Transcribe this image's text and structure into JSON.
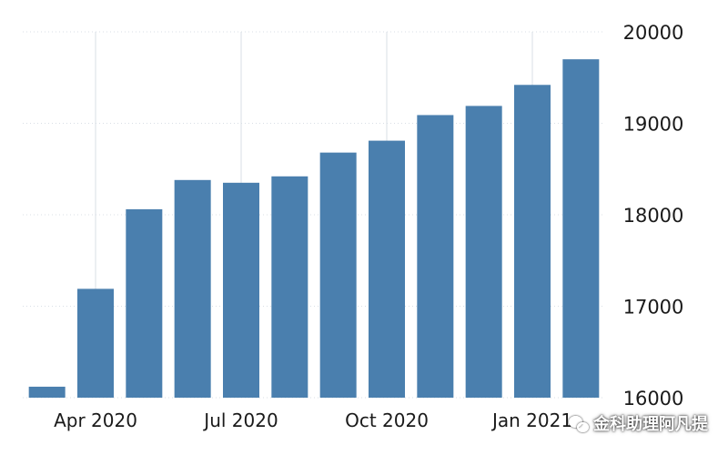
{
  "chart_data": {
    "type": "bar",
    "categories": [
      "2020-03",
      "2020-04",
      "2020-05",
      "2020-06",
      "2020-07",
      "2020-08",
      "2020-09",
      "2020-10",
      "2020-11",
      "2020-12",
      "2021-01",
      "2021-02"
    ],
    "values": [
      16120,
      17190,
      18060,
      18380,
      18350,
      18420,
      18680,
      18810,
      19090,
      19190,
      19420,
      19700
    ],
    "x_tick_labels": [
      {
        "label": "Apr 2020",
        "category": "2020-04"
      },
      {
        "label": "Jul 2020",
        "category": "2020-07"
      },
      {
        "label": "Oct 2020",
        "category": "2020-10"
      },
      {
        "label": "Jan 2021",
        "category": "2021-01"
      }
    ],
    "y_ticks": [
      16000,
      17000,
      18000,
      19000,
      20000
    ],
    "ylim": [
      16000,
      20000
    ],
    "y_axis_side": "right",
    "grid": true,
    "title": "",
    "xlabel": "",
    "ylabel": ""
  },
  "colors": {
    "bar": "#4a7fae",
    "grid": "#d9dfe6",
    "tick_text": "#1a1a1a"
  },
  "watermark": {
    "text": "金科助理阿凡提",
    "icon": "wechat-icon"
  }
}
